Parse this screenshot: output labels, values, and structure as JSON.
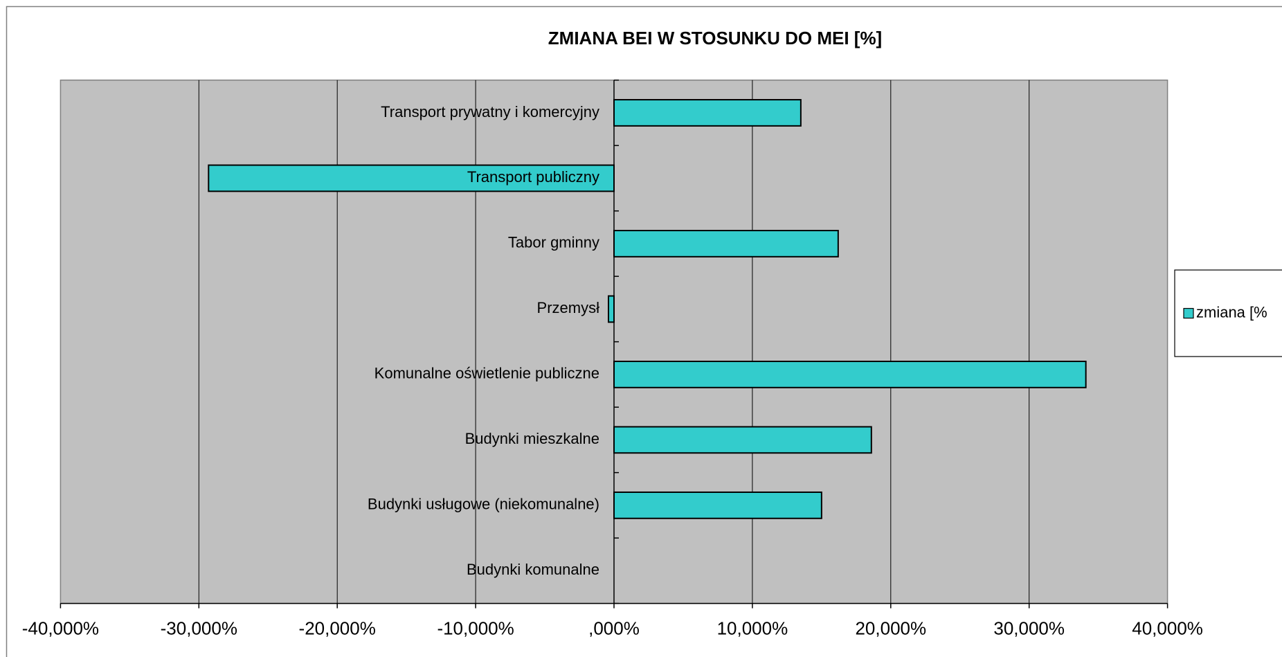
{
  "chart_data": {
    "type": "barh",
    "title": "ZMIANA BEI W STOSUNKU DO MEI [%]",
    "categories": [
      "Transport prywatny i komercyjny",
      "Transport publiczny",
      "Tabor gminny",
      "Przemysł",
      "Komunalne oświetlenie publiczne",
      "Budynki mieszkalne",
      "Budynki usługowe (niekomunalne)",
      "Budynki komunalne"
    ],
    "series": [
      {
        "name": "zmiana [%",
        "color": "#33cccc",
        "values": [
          13.5,
          -29.3,
          16.2,
          -0.4,
          34.1,
          18.6,
          15.0,
          0
        ]
      }
    ],
    "xlim": [
      -40,
      40
    ],
    "xticks": [
      {
        "value": -40,
        "label": "-40,000%"
      },
      {
        "value": -30,
        "label": "-30,000%"
      },
      {
        "value": -20,
        "label": "-20,000%"
      },
      {
        "value": -10,
        "label": "-10,000%"
      },
      {
        "value": 0,
        "label": ",000%"
      },
      {
        "value": 10,
        "label": "10,000%"
      },
      {
        "value": 20,
        "label": "20,000%"
      },
      {
        "value": 30,
        "label": "30,000%"
      },
      {
        "value": 40,
        "label": "40,000%"
      }
    ],
    "grid": true,
    "legend": "right"
  }
}
